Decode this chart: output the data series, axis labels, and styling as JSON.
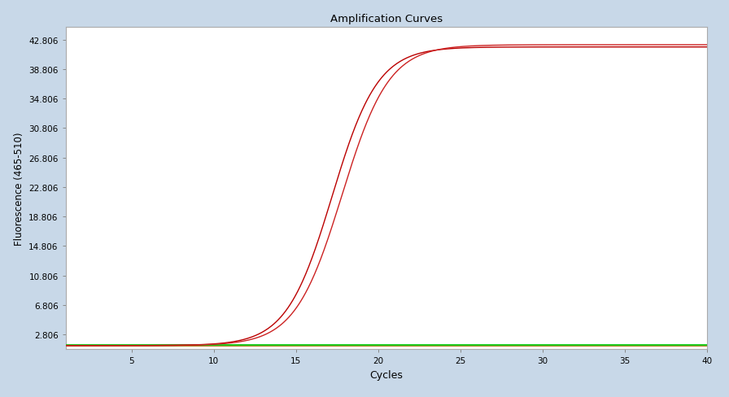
{
  "title": "Amplification Curves",
  "xlabel": "Cycles",
  "ylabel": "Fluorescence (465-510)",
  "background_color": "#c8d8e8",
  "plot_bg_color": "#ffffff",
  "yticks": [
    2.806,
    6.806,
    10.806,
    14.806,
    18.806,
    22.806,
    26.806,
    30.806,
    34.806,
    38.806,
    42.806
  ],
  "xticks": [
    5,
    10,
    15,
    20,
    25,
    30,
    35,
    40
  ],
  "xlim": [
    1,
    40
  ],
  "ylim": [
    0.8,
    44.5
  ],
  "sigmoid_color1": "#bb0000",
  "sigmoid_color2": "#cc2222",
  "flat_color": "#22cc22",
  "flat_color2": "#aa6600",
  "sigmoid_L1": 40.5,
  "sigmoid_k1": 0.72,
  "sigmoid_x01": 17.2,
  "sigmoid_baseline1": 1.3,
  "sigmoid_L2": 40.8,
  "sigmoid_k2": 0.7,
  "sigmoid_x02": 17.8,
  "sigmoid_baseline2": 1.3,
  "flat_y_green": 1.35,
  "flat_y_orange": 1.3
}
